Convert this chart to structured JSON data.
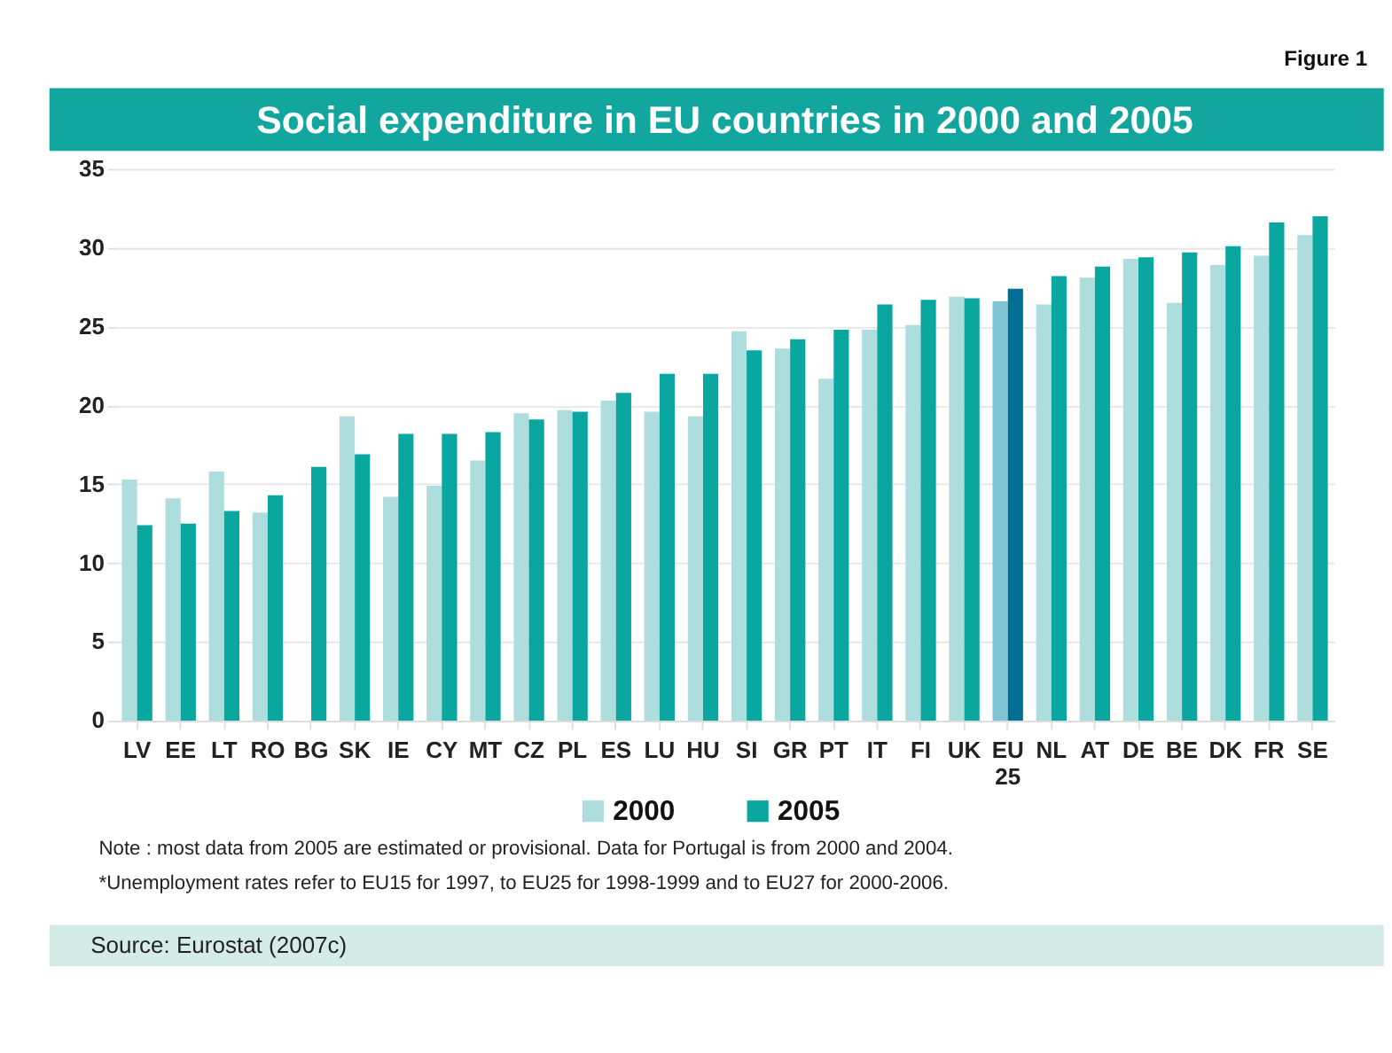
{
  "chart_data": {
    "type": "bar",
    "title": "Social expenditure in EU countries in 2000 and 2005",
    "categories": [
      "LV",
      "EE",
      "LT",
      "RO",
      "BG",
      "SK",
      "IE",
      "CY",
      "MT",
      "CZ",
      "PL",
      "ES",
      "LU",
      "HU",
      "SI",
      "GR",
      "PT",
      "IT",
      "FI",
      "UK",
      "EU 25",
      "NL",
      "AT",
      "DE",
      "BE",
      "DK",
      "FR",
      "SE"
    ],
    "series": [
      {
        "name": "2000",
        "color": "#aedddd",
        "colors": [
          "#aedddd",
          "#aedddd",
          "#aedddd",
          "#aedddd",
          "#aedddd",
          "#aedddd",
          "#aedddd",
          "#aedddd",
          "#aedddd",
          "#aedddd",
          "#aedddd",
          "#aedddd",
          "#aedddd",
          "#aedddd",
          "#aedddd",
          "#aedddd",
          "#aedddd",
          "#aedddd",
          "#aedddd",
          "#aedddd",
          "#7ec4d4",
          "#aedddd",
          "#aedddd",
          "#aedddd",
          "#aedddd",
          "#aedddd",
          "#aedddd",
          "#aedddd"
        ],
        "values": [
          15.3,
          14.1,
          15.8,
          13.2,
          null,
          19.3,
          14.2,
          14.9,
          16.5,
          19.5,
          19.7,
          20.3,
          19.6,
          19.3,
          24.7,
          23.6,
          21.7,
          24.8,
          25.1,
          26.9,
          26.6,
          26.4,
          28.1,
          29.3,
          26.5,
          28.9,
          29.5,
          30.8
        ]
      },
      {
        "name": "2005",
        "color": "#0aa6a0",
        "colors": [
          "#0aa6a0",
          "#0aa6a0",
          "#0aa6a0",
          "#0aa6a0",
          "#0aa6a0",
          "#0aa6a0",
          "#0aa6a0",
          "#0aa6a0",
          "#0aa6a0",
          "#0aa6a0",
          "#0aa6a0",
          "#0aa6a0",
          "#0aa6a0",
          "#0aa6a0",
          "#0aa6a0",
          "#0aa6a0",
          "#0aa6a0",
          "#0aa6a0",
          "#0aa6a0",
          "#0aa6a0",
          "#006f94",
          "#0aa6a0",
          "#0aa6a0",
          "#0aa6a0",
          "#0aa6a0",
          "#0aa6a0",
          "#0aa6a0",
          "#0aa6a0"
        ],
        "values": [
          12.4,
          12.5,
          13.3,
          14.3,
          16.1,
          16.9,
          18.2,
          18.2,
          18.3,
          19.1,
          19.6,
          20.8,
          22.0,
          22.0,
          23.5,
          24.2,
          24.8,
          26.4,
          26.7,
          26.8,
          27.4,
          28.2,
          28.8,
          29.4,
          29.7,
          30.1,
          31.6,
          32.0
        ]
      }
    ],
    "ylim": [
      0,
      35
    ],
    "yticks": [
      0,
      5,
      10,
      15,
      20,
      25,
      30,
      35
    ],
    "grid": "y",
    "legend": "bottom",
    "annotations": [
      "Figure 1",
      "Note : most data from 2005 are estimated or provisional. Data for Portugal is from 2000 and 2004.",
      "*Unemployment rates refer to EU15 for 1997, to EU25 for 1998-1999 and to EU27 for 2000-2006.",
      "Source: Eurostat (2007c)"
    ]
  }
}
